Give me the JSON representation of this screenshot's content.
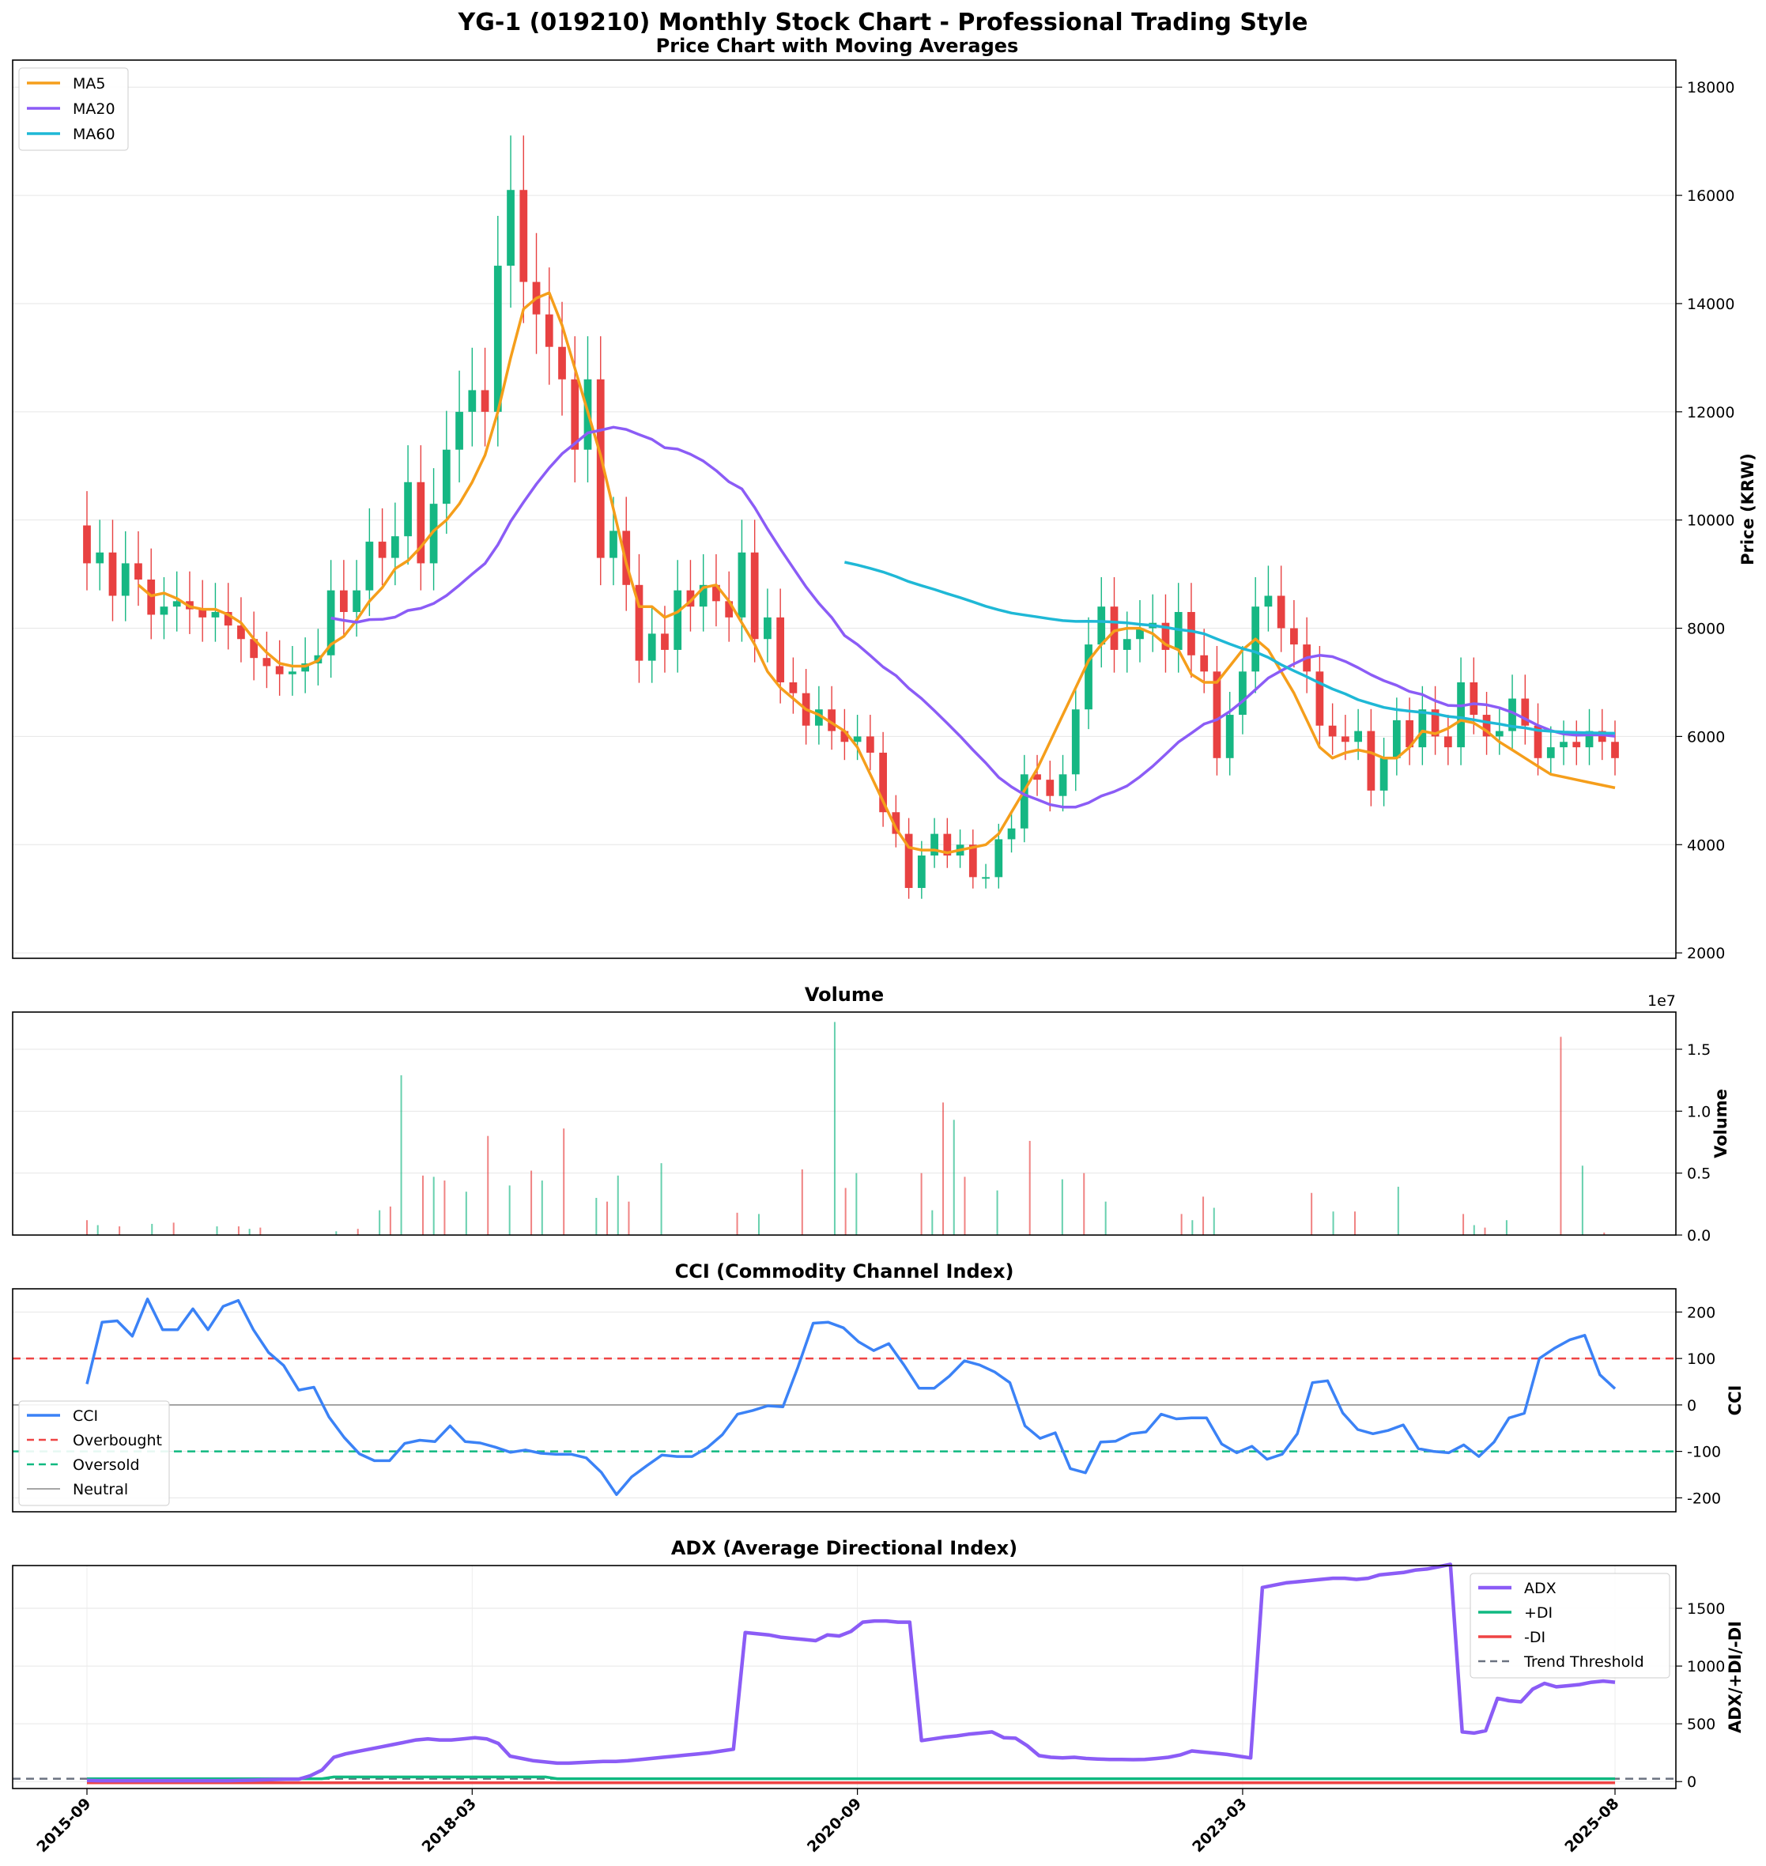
{
  "title": "YG-1 (019210) Monthly Stock Chart - Professional Trading Style",
  "colors": {
    "up": "#16b783",
    "down": "#e84141",
    "ma5": "#f59e1b",
    "ma20": "#8b5cf6",
    "ma60": "#1fb8d6",
    "cci": "#3b82f6",
    "overbought": "#ef4444",
    "oversold": "#10b981",
    "neutral": "#888888",
    "adx": "#8b5cf6",
    "pdi": "#10b981",
    "mdi": "#ef4444",
    "threshold": "#6b7280"
  },
  "chart_data": [
    {
      "type": "candlestick",
      "title": "Price Chart with Moving Averages",
      "ylabel": "Price (KRW)",
      "ylim": [
        1900,
        18500
      ],
      "yticks": [
        2000,
        4000,
        6000,
        8000,
        10000,
        12000,
        14000,
        16000,
        18000
      ],
      "x_index_range": [
        0,
        119
      ],
      "legend": [
        "MA5",
        "MA20",
        "MA60"
      ],
      "legend_position": "top-left",
      "closes": [
        9200,
        9400,
        8600,
        9200,
        8900,
        8250,
        8400,
        8500,
        8350,
        8200,
        8300,
        8050,
        7800,
        7450,
        7300,
        7150,
        7200,
        7350,
        7500,
        8700,
        8300,
        8700,
        9600,
        9300,
        9700,
        10700,
        9200,
        10300,
        11300,
        12000,
        12400,
        12000,
        14700,
        16100,
        14400,
        13800,
        13200,
        12600,
        11300,
        12600,
        9300,
        9800,
        8800,
        7400,
        7900,
        7600,
        8700,
        8400,
        8800,
        8500,
        8200,
        9400,
        7800,
        8200,
        7000,
        6800,
        6200,
        6500,
        6100,
        5900,
        6000,
        5700,
        4600,
        4200,
        3200,
        3800,
        4200,
        3800,
        4000,
        3400,
        3400,
        4100,
        4300,
        5300,
        5200,
        4900,
        5300,
        6500,
        7700,
        8400,
        7600,
        7800,
        8000,
        8100,
        7600,
        8300,
        7500,
        7200,
        5600,
        6400,
        7200,
        8400,
        8600,
        8000,
        7700,
        7200,
        6200,
        6000,
        5900,
        6100,
        5000,
        5600,
        6300,
        5800,
        6500,
        6000,
        5800,
        7000,
        6400,
        6000,
        6100,
        6700,
        6200,
        5600,
        5800,
        5900,
        5800,
        6100,
        5900,
        5600
      ],
      "ma5": [
        null,
        null,
        null,
        null,
        8800,
        8600,
        8650,
        8550,
        8400,
        8350,
        8350,
        8250,
        8100,
        7800,
        7550,
        7350,
        7300,
        7300,
        7400,
        7700,
        7850,
        8150,
        8500,
        8750,
        9100,
        9250,
        9500,
        9800,
        10000,
        10300,
        10700,
        11200,
        12000,
        13000,
        13900,
        14100,
        14200,
        13600,
        12800,
        12000,
        11200,
        10200,
        9200,
        8400,
        8400,
        8200,
        8300,
        8500,
        8750,
        8800,
        8500,
        8100,
        7700,
        7200,
        6900,
        6700,
        6500,
        6400,
        6250,
        6100,
        5800,
        5300,
        4800,
        4300,
        3950,
        3900,
        3900,
        3850,
        3900,
        3950,
        4000,
        4200,
        4600,
        5000,
        5400,
        5900,
        6400,
        6900,
        7400,
        7700,
        7950,
        8000,
        8000,
        7900,
        7700,
        7600,
        7150,
        7000,
        7000,
        7300,
        7600,
        7800,
        7600,
        7200,
        6800,
        6300,
        5800,
        5600,
        5700,
        5750,
        5700,
        5600,
        5600,
        5800,
        6100,
        6050,
        6150,
        6300,
        6250,
        6100,
        5900,
        5750,
        5600,
        5450,
        5300,
        5250,
        5200,
        5150,
        5100,
        5050
      ]
    },
    {
      "type": "bar",
      "title": "Volume",
      "ylabel": "Volume",
      "exponent_label": "1e7",
      "ylim": [
        0,
        1.8
      ],
      "yticks": [
        "0.0",
        "0.5",
        "1.0",
        "1.5"
      ],
      "spikes": [
        [
          0,
          0.12
        ],
        [
          1,
          0.08
        ],
        [
          3,
          0.07
        ],
        [
          6,
          0.09
        ],
        [
          8,
          0.1
        ],
        [
          12,
          0.07
        ],
        [
          14,
          0.07
        ],
        [
          15,
          0.05
        ],
        [
          16,
          0.06
        ],
        [
          23,
          0.03
        ],
        [
          25,
          0.05
        ],
        [
          27,
          0.2
        ],
        [
          28,
          0.23
        ],
        [
          29,
          1.29
        ],
        [
          31,
          0.48
        ],
        [
          32,
          0.47
        ],
        [
          33,
          0.44
        ],
        [
          35,
          0.35
        ],
        [
          37,
          0.8
        ],
        [
          39,
          0.4
        ],
        [
          41,
          0.52
        ],
        [
          42,
          0.44
        ],
        [
          44,
          0.86
        ],
        [
          47,
          0.3
        ],
        [
          48,
          0.27
        ],
        [
          49,
          0.48
        ],
        [
          50,
          0.27
        ],
        [
          53,
          0.58
        ],
        [
          60,
          0.18
        ],
        [
          62,
          0.17
        ],
        [
          66,
          0.53
        ],
        [
          69,
          1.72
        ],
        [
          70,
          0.38
        ],
        [
          71,
          0.5
        ],
        [
          77,
          0.5
        ],
        [
          78,
          0.2
        ],
        [
          79,
          1.07
        ],
        [
          80,
          0.93
        ],
        [
          81,
          0.47
        ],
        [
          84,
          0.36
        ],
        [
          87,
          0.76
        ],
        [
          90,
          0.45
        ],
        [
          92,
          0.5
        ],
        [
          94,
          0.27
        ],
        [
          101,
          0.17
        ],
        [
          102,
          0.12
        ],
        [
          103,
          0.31
        ],
        [
          104,
          0.22
        ],
        [
          113,
          0.34
        ],
        [
          115,
          0.19
        ],
        [
          117,
          0.19
        ],
        [
          121,
          0.39
        ],
        [
          127,
          0.17
        ],
        [
          128,
          0.08
        ],
        [
          129,
          0.06
        ],
        [
          131,
          0.12
        ],
        [
          136,
          1.6
        ],
        [
          138,
          0.56
        ],
        [
          140,
          0.02
        ]
      ],
      "x_index_range": [
        0,
        141
      ]
    },
    {
      "type": "line",
      "title": "CCI (Commodity Channel Index)",
      "ylabel": "CCI",
      "ylim": [
        -230,
        250
      ],
      "yticks": [
        200,
        100,
        0,
        -100,
        -200
      ],
      "legend": [
        "CCI",
        "Overbought",
        "Oversold",
        "Neutral"
      ],
      "legend_position": "lower-left",
      "overbought": 100,
      "oversold": -100,
      "neutral": 0,
      "values": [
        45,
        178,
        181,
        148,
        228,
        162,
        162,
        207,
        162,
        212,
        225,
        162,
        113,
        85,
        32,
        38,
        -26,
        -70,
        -105,
        -120,
        -120,
        -83,
        -76,
        -79,
        -45,
        -79,
        -82,
        -91,
        -102,
        -97,
        -104,
        -106,
        -106,
        -114,
        -145,
        -193,
        -155,
        -131,
        -108,
        -111,
        -111,
        -92,
        -64,
        -20,
        -12,
        -2,
        -4,
        82,
        176,
        178,
        166,
        136,
        117,
        132,
        86,
        36,
        36,
        62,
        95,
        86,
        71,
        48,
        -45,
        -72,
        -60,
        -137,
        -146,
        -80,
        -78,
        -62,
        -58,
        -20,
        -30,
        -28,
        -28,
        -84,
        -103,
        -89,
        -117,
        -106,
        -62,
        48,
        52,
        -17,
        -53,
        -62,
        -55,
        -43,
        -94,
        -100,
        -103,
        -86,
        -111,
        -80,
        -28,
        -18,
        100,
        122,
        140,
        150,
        65,
        35
      ]
    },
    {
      "type": "line",
      "title": "ADX (Average Directional Index)",
      "ylabel": "ADX/+DI/-DI",
      "ylim": [
        -60,
        1870
      ],
      "yticks": [
        0,
        500,
        1000,
        1500
      ],
      "legend": [
        "ADX",
        "+DI",
        "-DI",
        "Trend Threshold"
      ],
      "legend_position": "top-right",
      "trend_threshold": 25,
      "xticks": [
        "2015-09",
        "2018-03",
        "2020-09",
        "2023-03",
        "2025-08"
      ],
      "xtick_index": [
        0,
        30,
        60,
        90,
        119
      ],
      "adx": [
        10,
        8,
        8,
        8,
        8,
        8,
        8,
        8,
        8,
        8,
        8,
        8,
        8,
        10,
        12,
        15,
        18,
        20,
        20,
        50,
        100,
        210,
        240,
        260,
        280,
        300,
        320,
        340,
        360,
        370,
        360,
        360,
        370,
        380,
        370,
        330,
        220,
        200,
        180,
        170,
        160,
        160,
        165,
        170,
        175,
        175,
        180,
        190,
        200,
        210,
        220,
        230,
        240,
        250,
        265,
        280,
        1290,
        1280,
        1270,
        1250,
        1240,
        1230,
        1220,
        1270,
        1260,
        1300,
        1380,
        1390,
        1390,
        1380,
        1380,
        355,
        370,
        385,
        395,
        410,
        420,
        430,
        380,
        375,
        310,
        225,
        210,
        205,
        210,
        200,
        195,
        192,
        192,
        190,
        192,
        200,
        210,
        230,
        265,
        255,
        245,
        235,
        220,
        205,
        1680,
        1700,
        1720,
        1730,
        1740,
        1750,
        1760,
        1760,
        1750,
        1760,
        1790,
        1800,
        1810,
        1830,
        1840,
        1860,
        1880,
        430,
        420,
        440,
        720,
        700,
        690,
        800,
        850,
        820,
        830,
        840,
        860,
        870,
        860
      ],
      "pdi_level": 25,
      "mdi_level": -10
    }
  ]
}
